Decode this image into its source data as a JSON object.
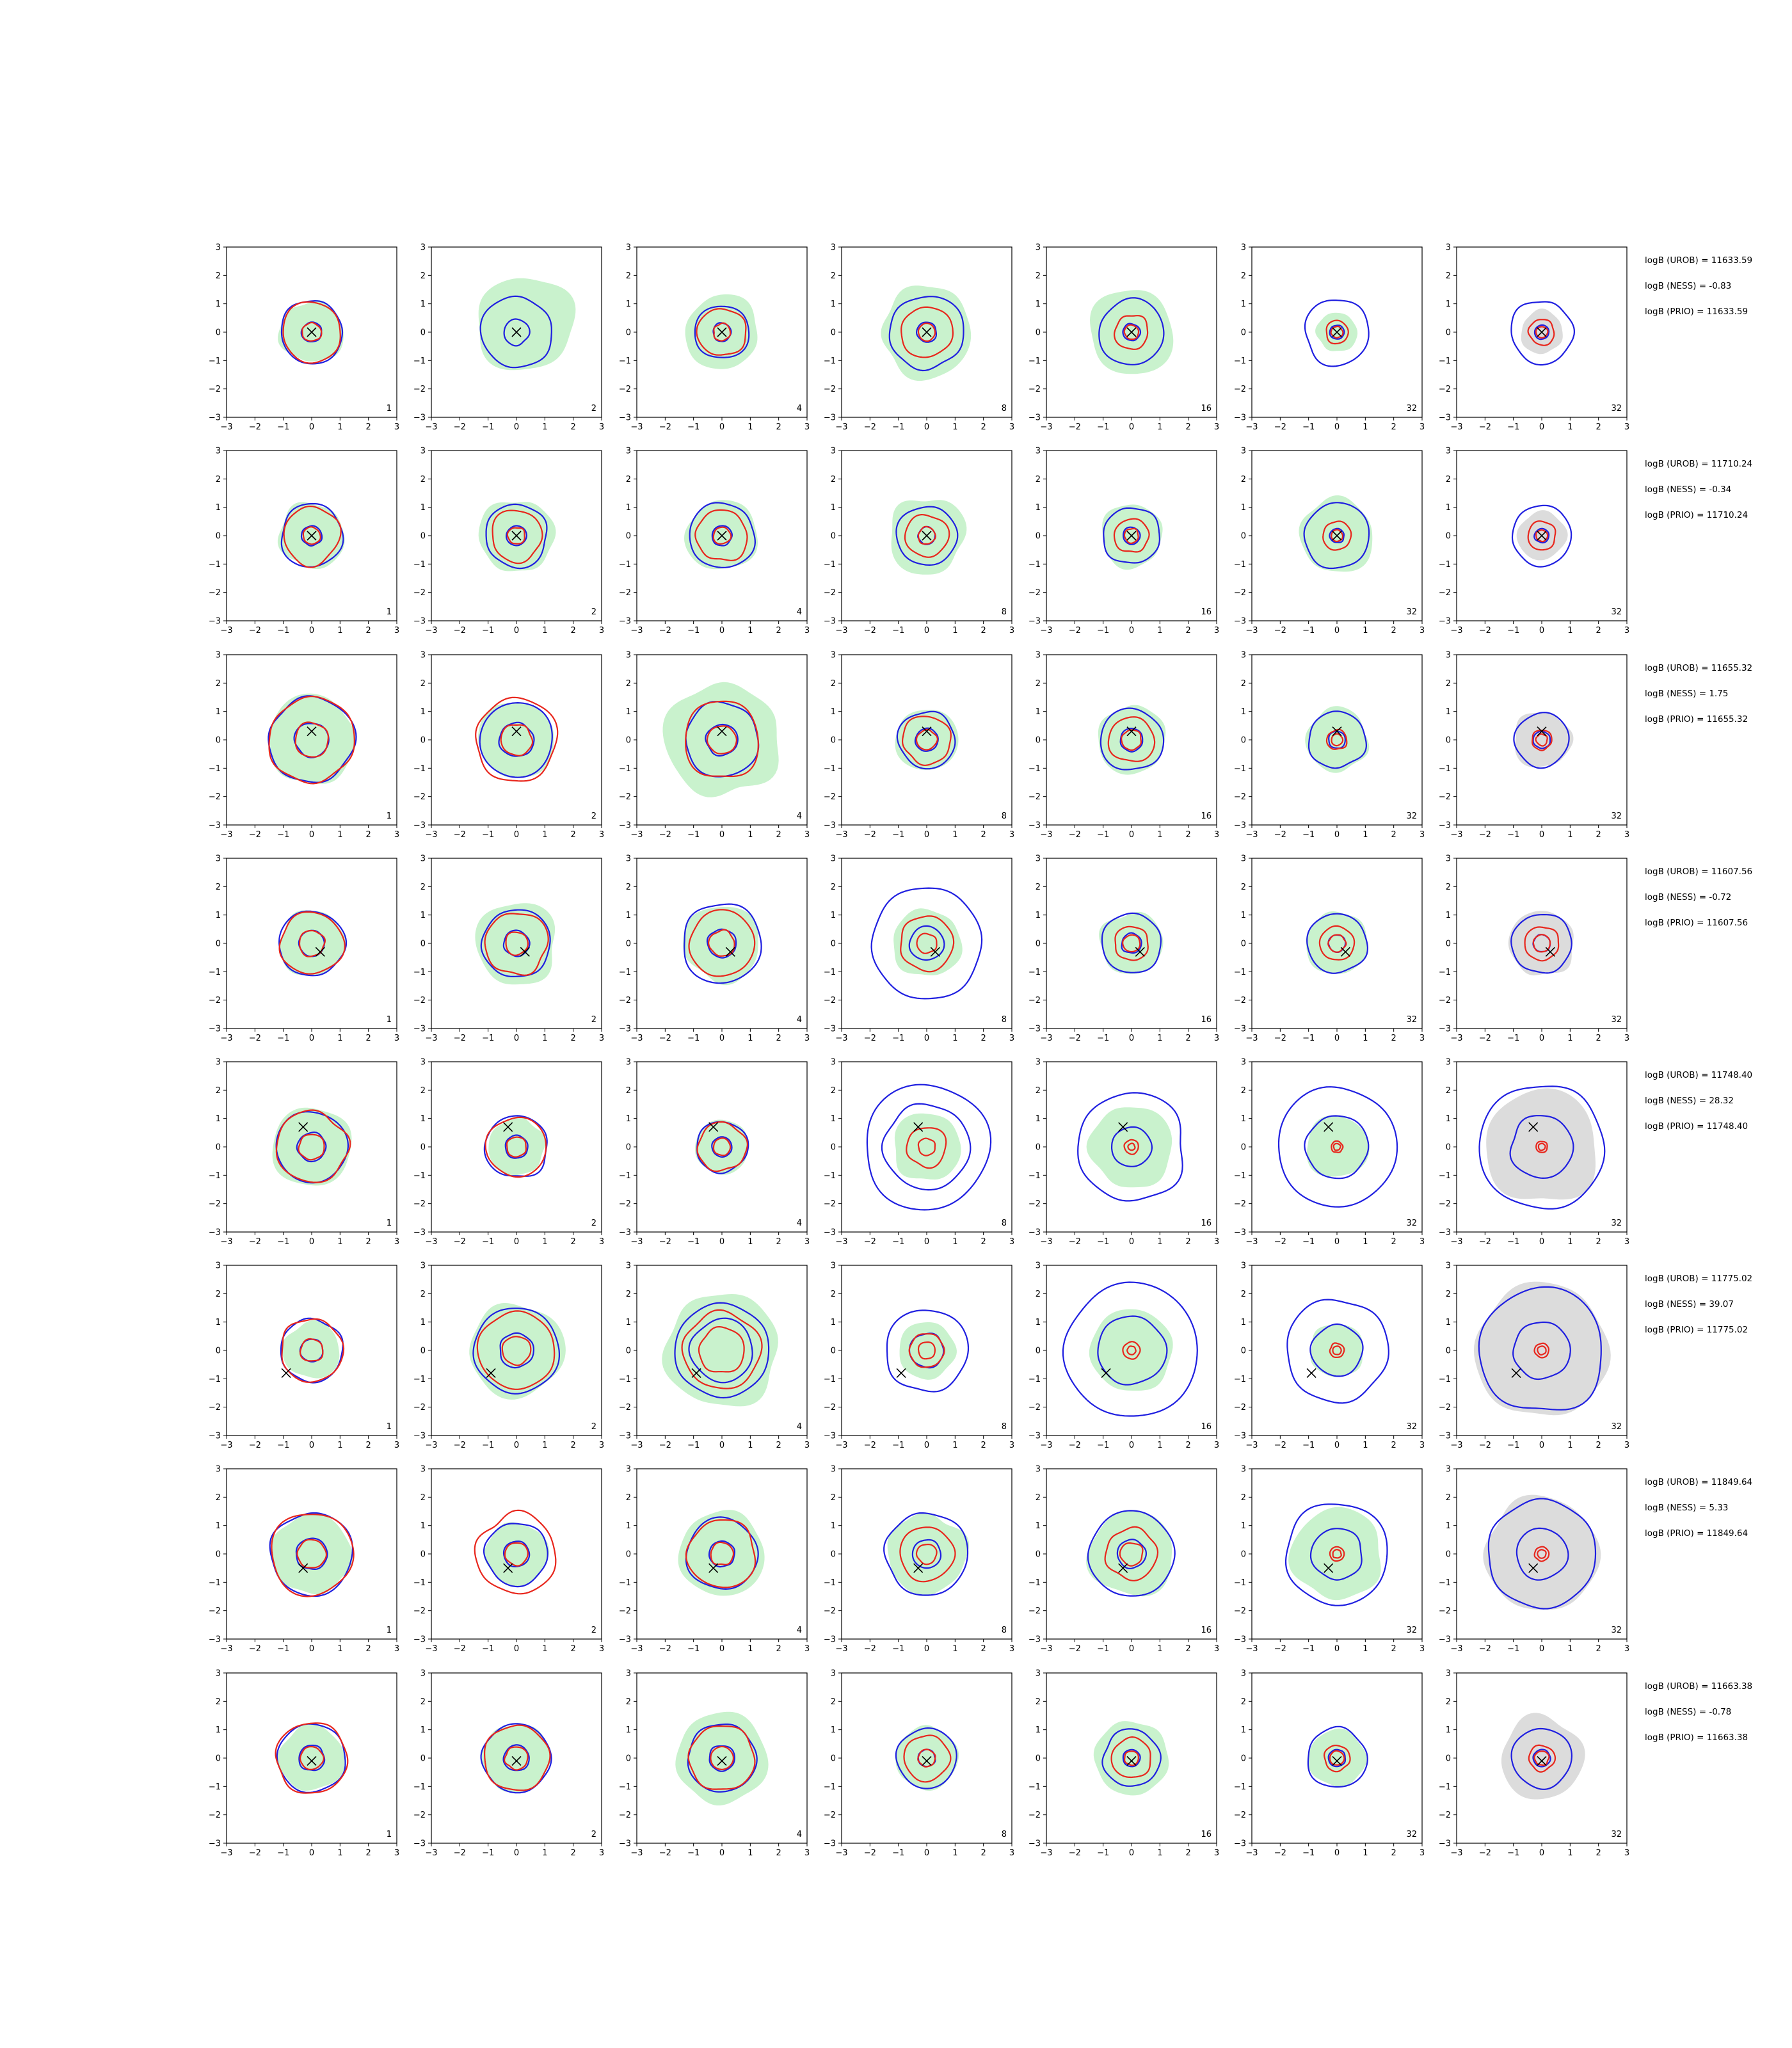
{
  "chart_data": {
    "type": "contour-grid",
    "title": "",
    "xlabel": "",
    "ylabel": "",
    "xlim": [
      -3,
      3
    ],
    "ylim": [
      -3,
      3
    ],
    "ticks": [
      -3,
      -2,
      -1,
      0,
      1,
      2,
      3
    ],
    "grid": false,
    "columns": [
      "1",
      "2",
      "4",
      "8",
      "16",
      "32",
      "32"
    ],
    "colors": {
      "red": "#e8261c",
      "blue": "#1f1fe0",
      "green": "#c9f2cd",
      "gray": "#dcdcdc",
      "marker": "#000000",
      "axes": "#000000"
    },
    "rows": [
      {
        "truth": [
          0.0,
          0.0
        ],
        "annotations": [
          "logB (UROB) = 11633.59",
          "logB (NESS) = -0.83",
          "logB (PRIO) = 11633.59"
        ],
        "panels": [
          {
            "label": "1",
            "blue": [
              0.35,
              1.1
            ],
            "red": [
              0.33,
              1.05
            ],
            "green": 1.1
          },
          {
            "label": "2",
            "blue": [
              0.45,
              1.25
            ],
            "red": [],
            "green": 1.7
          },
          {
            "label": "4",
            "blue": [
              0.32,
              0.95
            ],
            "red": [
              0.3,
              0.85
            ],
            "green": 1.3
          },
          {
            "label": "8",
            "blue": [
              0.35,
              1.3
            ],
            "red": [
              0.3,
              0.9
            ],
            "green": 1.6
          },
          {
            "label": "16",
            "blue": [
              0.3,
              1.15
            ],
            "red": [
              0.25,
              0.6
            ],
            "green": 1.5
          },
          {
            "label": "32",
            "blue": [
              0.25,
              1.15
            ],
            "red": [
              0.2,
              0.4
            ],
            "green": 0.7
          },
          {
            "label": "32",
            "blue": [
              0.25,
              1.1
            ],
            "red": [
              0.2,
              0.45
            ],
            "green": 0,
            "gray": 0.75
          }
        ]
      },
      {
        "truth": [
          0.0,
          0.0
        ],
        "annotations": [
          "logB (UROB) = 11710.24",
          "logB (NESS) = -0.34",
          "logB (PRIO) = 11710.24"
        ],
        "panels": [
          {
            "label": "1",
            "blue": [
              0.35,
              1.1
            ],
            "red": [
              0.3,
              1.0
            ],
            "green": 1.15
          },
          {
            "label": "2",
            "blue": [
              0.35,
              1.1
            ],
            "red": [
              0.3,
              0.9
            ],
            "green": 1.3
          },
          {
            "label": "4",
            "blue": [
              0.35,
              1.15
            ],
            "red": [
              0.3,
              0.9
            ],
            "green": 1.25
          },
          {
            "label": "8",
            "blue": [
              0.3,
              1.05
            ],
            "red": [
              0.3,
              0.75
            ],
            "green": 1.35
          },
          {
            "label": "16",
            "blue": [
              0.3,
              1.0
            ],
            "red": [
              0.25,
              0.6
            ],
            "green": 1.1
          },
          {
            "label": "32",
            "blue": [
              0.25,
              1.15
            ],
            "red": [
              0.2,
              0.5
            ],
            "green": 1.3
          },
          {
            "label": "32",
            "blue": [
              0.25,
              1.05
            ],
            "red": [
              0.2,
              0.5
            ],
            "green": 0,
            "gray": 0.85
          }
        ]
      },
      {
        "truth": [
          0.0,
          0.3
        ],
        "annotations": [
          "logB (UROB) = 11655.32",
          "logB (NESS) = 1.75",
          "logB (PRIO) = 11655.32"
        ],
        "panels": [
          {
            "label": "1",
            "blue": [
              0.6,
              1.5
            ],
            "red": [
              0.6,
              1.5
            ],
            "green": 1.55
          },
          {
            "label": "2",
            "blue": [
              0.6,
              1.3
            ],
            "red": [
              0.55,
              1.45
            ],
            "green": 1.35
          },
          {
            "label": "4",
            "blue": [
              0.55,
              1.3
            ],
            "red": [
              0.5,
              1.35
            ],
            "green": 2.0
          },
          {
            "label": "8",
            "blue": [
              0.4,
              1.0
            ],
            "red": [
              0.35,
              0.85
            ],
            "green": 1.1
          },
          {
            "label": "16",
            "blue": [
              0.4,
              1.1
            ],
            "red": [
              0.35,
              0.8
            ],
            "green": 1.2
          },
          {
            "label": "32",
            "blue": [
              0.3,
              1.0
            ],
            "red": [
              0.2,
              0.35
            ],
            "green": 1.1
          },
          {
            "label": "32",
            "blue": [
              0.3,
              0.95
            ],
            "red": [
              0.2,
              0.35
            ],
            "green": 0,
            "gray": 1.0
          }
        ]
      },
      {
        "truth": [
          0.3,
          -0.3
        ],
        "annotations": [
          "logB (UROB) = 11607.56",
          "logB (NESS) = -0.72",
          "logB (PRIO) = 11607.56"
        ],
        "panels": [
          {
            "label": "1",
            "blue": [
              0.45,
              1.15
            ],
            "red": [
              0.45,
              1.1
            ],
            "green": 1.15
          },
          {
            "label": "2",
            "blue": [
              0.45,
              1.2
            ],
            "red": [
              0.4,
              1.1
            ],
            "green": 1.45
          },
          {
            "label": "4",
            "blue": [
              0.5,
              1.4
            ],
            "red": [
              0.45,
              1.15
            ],
            "green": 1.35
          },
          {
            "label": "8",
            "blue": [
              0.6,
              1.95
            ],
            "red": [
              0.35,
              0.95
            ],
            "green": 1.2
          },
          {
            "label": "16",
            "blue": [
              0.35,
              1.05
            ],
            "red": [
              0.3,
              0.6
            ],
            "green": 1.1
          },
          {
            "label": "32",
            "blue": [
              0.3,
              1.05
            ],
            "red": [
              0.3,
              0.6
            ],
            "green": 1.1
          },
          {
            "label": "32",
            "blue": [
              0.3,
              1.05
            ],
            "red": [
              0.3,
              0.6
            ],
            "green": 0,
            "gray": 1.15
          }
        ]
      },
      {
        "truth": [
          -0.3,
          0.7
        ],
        "annotations": [
          "logB (UROB) = 11748.40",
          "logB (NESS) = 28.32",
          "logB (PRIO) = 11748.40"
        ],
        "panels": [
          {
            "label": "1",
            "blue": [
              0.5,
              1.25
            ],
            "red": [
              0.45,
              1.25
            ],
            "green": 1.4
          },
          {
            "label": "2",
            "blue": [
              0.4,
              1.1
            ],
            "red": [
              0.35,
              1.05
            ],
            "green": 1.0
          },
          {
            "label": "4",
            "blue": [
              0.35,
              0.9
            ],
            "red": [
              0.3,
              0.85
            ],
            "green": 0.95
          },
          {
            "label": "8",
            "blue": [
              1.5,
              2.2
            ],
            "red": [
              0.3,
              0.7
            ],
            "green": 1.2
          },
          {
            "label": "16",
            "blue": [
              0.7,
              1.9
            ],
            "red": [
              0.12,
              0.25
            ],
            "green": 1.45
          },
          {
            "label": "32",
            "blue": [
              1.1,
              2.1
            ],
            "red": [
              0.12,
              0.2
            ],
            "green": 1.1
          },
          {
            "label": "32",
            "blue": [
              1.1,
              2.2
            ],
            "red": [
              0.12,
              0.2
            ],
            "green": 0,
            "gray": 2.0
          }
        ]
      },
      {
        "truth": [
          -0.9,
          -0.8
        ],
        "annotations": [
          "logB (UROB) = 11775.02",
          "logB (NESS) = 39.07",
          "logB (PRIO) = 11775.02"
        ],
        "panels": [
          {
            "label": "1",
            "blue": [
              0.4,
              1.1
            ],
            "red": [
              0.4,
              1.1
            ],
            "green": 1.0
          },
          {
            "label": "2",
            "blue": [
              0.6,
              1.5
            ],
            "red": [
              0.5,
              1.35
            ],
            "green": 1.65
          },
          {
            "label": "4",
            "blue": [
              1.1,
              1.65
            ],
            "red": [
              0.8,
              1.35
            ],
            "green": 2.0
          },
          {
            "label": "8",
            "blue": [
              0.6,
              1.45
            ],
            "red": [
              0.3,
              0.6
            ],
            "green": 1.0
          },
          {
            "label": "16",
            "blue": [
              1.2,
              2.35
            ],
            "red": [
              0.15,
              0.3
            ],
            "green": 1.45
          },
          {
            "label": "32",
            "blue": [
              0.9,
              1.8
            ],
            "red": [
              0.15,
              0.25
            ],
            "green": 0.95
          },
          {
            "label": "32",
            "blue": [
              1.0,
              2.2
            ],
            "red": [
              0.15,
              0.25
            ],
            "green": 0,
            "gray": 2.35
          }
        ]
      },
      {
        "truth": [
          -0.3,
          -0.5
        ],
        "annotations": [
          "logB (UROB) = 11849.64",
          "logB (NESS) = 5.33",
          "logB (PRIO) = 11849.64"
        ],
        "panels": [
          {
            "label": "1",
            "blue": [
              0.55,
              1.45
            ],
            "red": [
              0.5,
              1.45
            ],
            "green": 1.4
          },
          {
            "label": "2",
            "blue": [
              0.45,
              1.1
            ],
            "red": [
              0.4,
              1.4
            ],
            "green": 1.1
          },
          {
            "label": "4",
            "blue": [
              0.45,
              1.25
            ],
            "red": [
              0.4,
              1.2
            ],
            "green": 1.5
          },
          {
            "label": "8",
            "blue": [
              0.5,
              1.45
            ],
            "red": [
              0.35,
              0.95
            ],
            "green": 1.4
          },
          {
            "label": "16",
            "blue": [
              0.5,
              1.5
            ],
            "red": [
              0.4,
              0.9
            ],
            "green": 1.5
          },
          {
            "label": "32",
            "blue": [
              0.9,
              1.8
            ],
            "red": [
              0.15,
              0.25
            ],
            "green": 1.6
          },
          {
            "label": "32",
            "blue": [
              0.9,
              1.9
            ],
            "red": [
              0.15,
              0.25
            ],
            "green": 0,
            "gray": 2.0
          }
        ]
      },
      {
        "truth": [
          0.0,
          -0.1
        ],
        "annotations": [
          "logB (UROB) = 11663.38",
          "logB (NESS) = -0.78",
          "logB (PRIO) = 11663.38"
        ],
        "panels": [
          {
            "label": "1",
            "blue": [
              0.45,
              1.2
            ],
            "red": [
              0.4,
              1.25
            ],
            "green": 1.15
          },
          {
            "label": "2",
            "blue": [
              0.45,
              1.2
            ],
            "red": [
              0.4,
              1.15
            ],
            "green": 1.2
          },
          {
            "label": "4",
            "blue": [
              0.45,
              1.2
            ],
            "red": [
              0.4,
              1.15
            ],
            "green": 1.6
          },
          {
            "label": "8",
            "blue": [
              0.3,
              1.05
            ],
            "red": [
              0.3,
              0.8
            ],
            "green": 1.1
          },
          {
            "label": "16",
            "blue": [
              0.3,
              1.0
            ],
            "red": [
              0.25,
              0.7
            ],
            "green": 1.3
          },
          {
            "label": "32",
            "blue": [
              0.3,
              1.05
            ],
            "red": [
              0.25,
              0.45
            ],
            "green": 1.0
          },
          {
            "label": "32",
            "blue": [
              0.3,
              1.05
            ],
            "red": [
              0.25,
              0.45
            ],
            "green": 0,
            "gray": 1.45
          }
        ]
      }
    ]
  }
}
